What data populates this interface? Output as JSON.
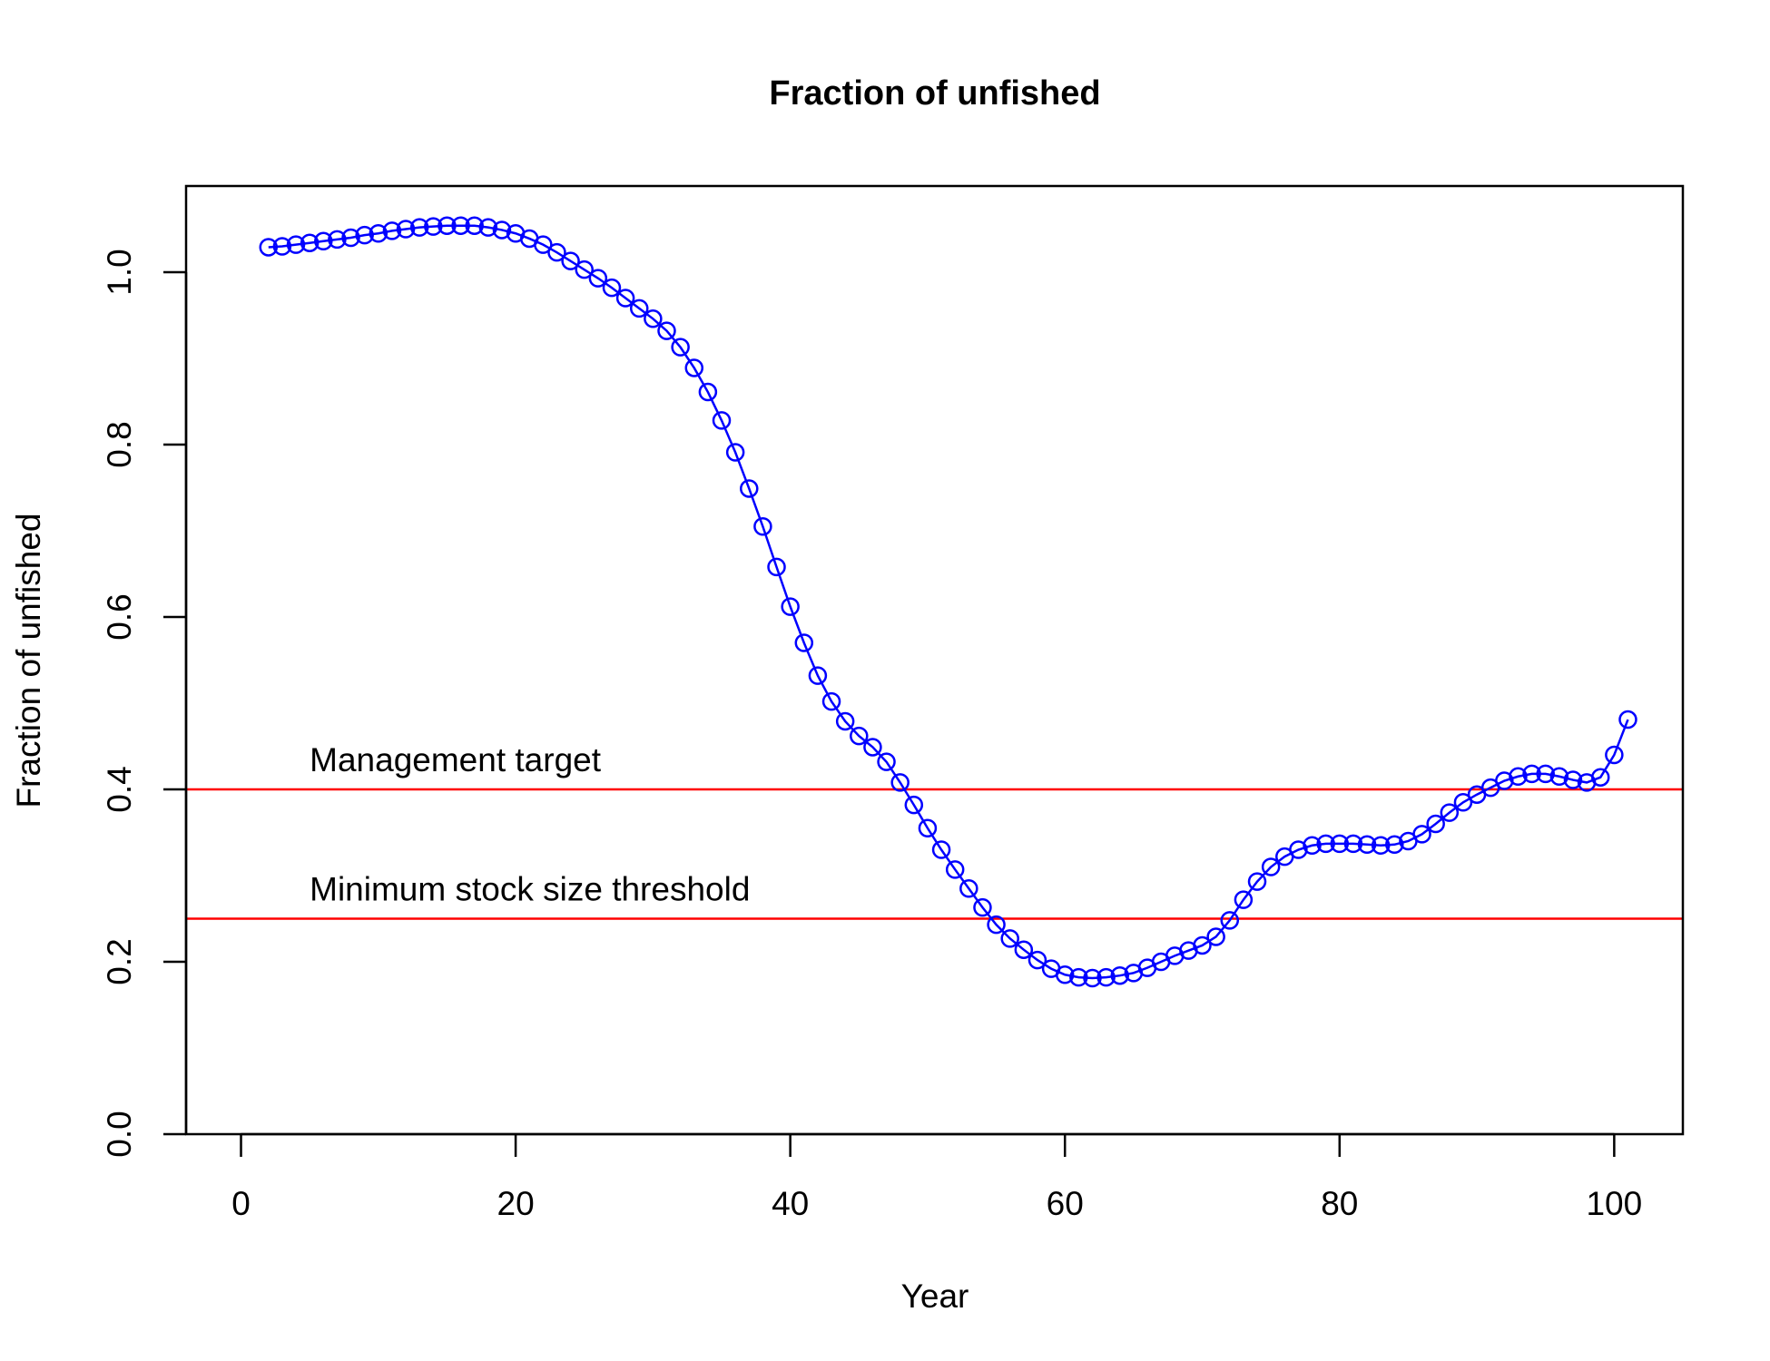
{
  "chart_data": {
    "type": "line",
    "title": "Fraction of unfished",
    "xlabel": "Year",
    "ylabel": "Fraction of unfished",
    "xlim": [
      -4,
      105
    ],
    "ylim": [
      0,
      1.1
    ],
    "x_ticks": [
      0,
      20,
      40,
      60,
      80,
      100
    ],
    "x_tick_labels": [
      "0",
      "20",
      "40",
      "60",
      "80",
      "100"
    ],
    "y_ticks": [
      0,
      0.2,
      0.4,
      0.6,
      0.8,
      1.0
    ],
    "y_tick_labels": [
      "0.0",
      "0.2",
      "0.4",
      "0.6",
      "0.8",
      "1.0"
    ],
    "grid": false,
    "legend": "none",
    "colors": {
      "series": "#0000ff",
      "reference": "#ff0000",
      "axes": "#000000"
    },
    "series": [
      {
        "marker": "open-circle",
        "x": [
          2,
          3,
          4,
          5,
          6,
          7,
          8,
          9,
          10,
          11,
          12,
          13,
          14,
          15,
          16,
          17,
          18,
          19,
          20,
          21,
          22,
          23,
          24,
          25,
          26,
          27,
          28,
          29,
          30,
          31,
          32,
          33,
          34,
          35,
          36,
          37,
          38,
          39,
          40,
          41,
          42,
          43,
          44,
          45,
          46,
          47,
          48,
          49,
          50,
          51,
          52,
          53,
          54,
          55,
          56,
          57,
          58,
          59,
          60,
          61,
          62,
          63,
          64,
          65,
          66,
          67,
          68,
          69,
          70,
          71,
          72,
          73,
          74,
          75,
          76,
          77,
          78,
          79,
          80,
          81,
          82,
          83,
          84,
          85,
          86,
          87,
          88,
          89,
          90,
          91,
          92,
          93,
          94,
          95,
          96,
          97,
          98,
          99,
          100,
          101
        ],
        "y": [
          1.029,
          1.03,
          1.032,
          1.034,
          1.036,
          1.038,
          1.04,
          1.043,
          1.045,
          1.048,
          1.05,
          1.052,
          1.053,
          1.054,
          1.054,
          1.054,
          1.052,
          1.049,
          1.045,
          1.039,
          1.032,
          1.023,
          1.013,
          1.003,
          0.993,
          0.982,
          0.97,
          0.958,
          0.946,
          0.932,
          0.913,
          0.889,
          0.861,
          0.828,
          0.791,
          0.749,
          0.705,
          0.658,
          0.612,
          0.57,
          0.532,
          0.502,
          0.479,
          0.462,
          0.449,
          0.432,
          0.408,
          0.382,
          0.355,
          0.33,
          0.307,
          0.285,
          0.263,
          0.243,
          0.227,
          0.214,
          0.202,
          0.192,
          0.185,
          0.182,
          0.181,
          0.182,
          0.184,
          0.187,
          0.193,
          0.2,
          0.207,
          0.213,
          0.219,
          0.229,
          0.248,
          0.272,
          0.293,
          0.31,
          0.322,
          0.33,
          0.335,
          0.337,
          0.337,
          0.337,
          0.336,
          0.335,
          0.336,
          0.34,
          0.348,
          0.36,
          0.373,
          0.385,
          0.394,
          0.402,
          0.41,
          0.415,
          0.418,
          0.418,
          0.415,
          0.411,
          0.408,
          0.414,
          0.44,
          0.481
        ]
      }
    ],
    "reference_lines": [
      {
        "y": 0.4,
        "label": "Management target",
        "label_x": 5
      },
      {
        "y": 0.25,
        "label": "Minimum stock size threshold",
        "label_x": 5
      }
    ]
  }
}
